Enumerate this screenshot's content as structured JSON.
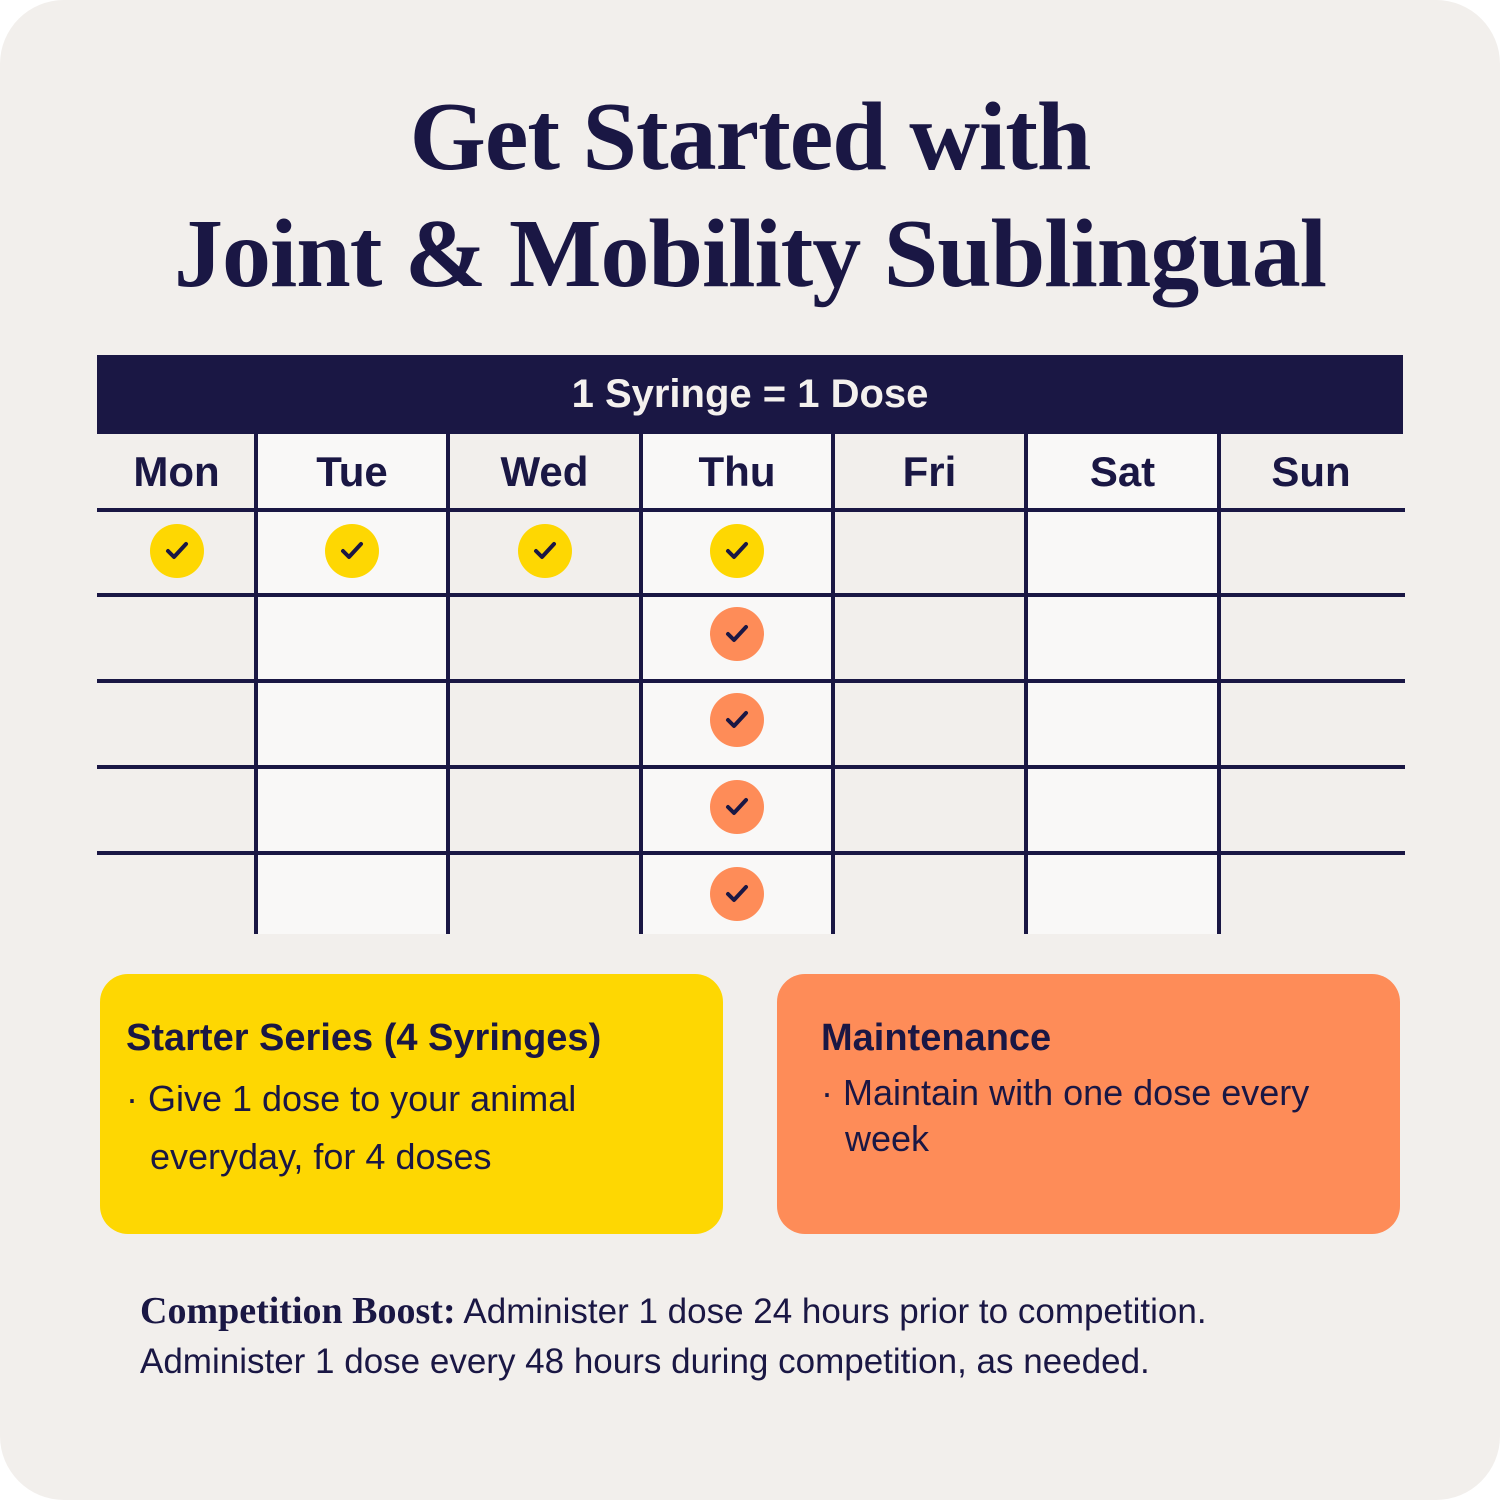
{
  "title": {
    "line1": "Get Started with",
    "line2": "Joint & Mobility Sublingual"
  },
  "schedule": {
    "banner": "1 Syringe = 1 Dose",
    "days": [
      "Mon",
      "Tue",
      "Wed",
      "Thu",
      "Fri",
      "Sat",
      "Sun"
    ],
    "checks": [
      {
        "day": "Mon",
        "row": 1,
        "color": "#fed702",
        "icon": "check-icon"
      },
      {
        "day": "Tue",
        "row": 1,
        "color": "#fed702",
        "icon": "check-icon"
      },
      {
        "day": "Wed",
        "row": 1,
        "color": "#fed702",
        "icon": "check-icon"
      },
      {
        "day": "Thu",
        "row": 1,
        "color": "#fed702",
        "icon": "check-icon"
      },
      {
        "day": "Thu",
        "row": 2,
        "color": "#fe8c58",
        "icon": "check-icon"
      },
      {
        "day": "Thu",
        "row": 3,
        "color": "#fe8c58",
        "icon": "check-icon"
      },
      {
        "day": "Thu",
        "row": 4,
        "color": "#fe8c58",
        "icon": "check-icon"
      },
      {
        "day": "Thu",
        "row": 5,
        "color": "#fe8c58",
        "icon": "check-icon"
      }
    ]
  },
  "starter": {
    "heading": "Starter Series (4 Syringes)",
    "bullet": "· Give 1 dose to your animal everyday, for 4 doses",
    "color": "#fed702"
  },
  "maintenance": {
    "heading": "Maintenance",
    "bullet": "· Maintain with one dose every week",
    "color": "#fe8c58"
  },
  "boost": {
    "label": "Competition Boost:",
    "text": " Administer 1 dose 24 hours prior to competition. Administer 1 dose every 48 hours during competition, as needed."
  },
  "colors": {
    "navy": "#1a1744",
    "background": "#f2efec",
    "yellow": "#fed702",
    "orange": "#fe8c58"
  }
}
